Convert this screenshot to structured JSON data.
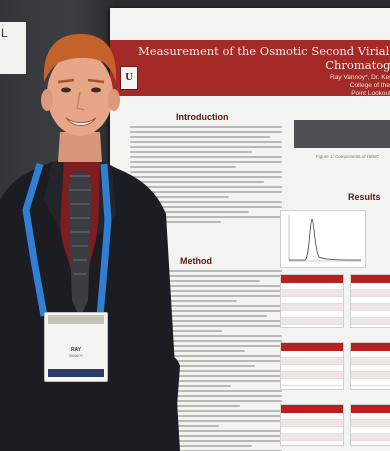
{
  "scene": {
    "description_colors": {
      "hair": "#c4622c",
      "skin": "#e6a687",
      "suit": "#1c1d22",
      "shirt": "#7d1d22",
      "lanyard": "#2f7fd3",
      "poster_banner": "#a32a26"
    }
  },
  "poster": {
    "title_line1": "Measurement of the Osmotic Second Virial Coefficient",
    "title_line2": "Chromatogr",
    "authors": "Ray Vannoy*, Dr. Kenne",
    "affiliation_1": "College of the Oz",
    "affiliation_2": "Point Lookout, M",
    "logo_letter": "U",
    "sections": {
      "introduction": "Introduction",
      "method": "Method",
      "results": "Results"
    },
    "figure_caption": "Figure 1: Components of HEBC"
  },
  "booth_card": {
    "text": "L"
  },
  "badge": {
    "name": "RAY",
    "org": "VANNOY"
  }
}
